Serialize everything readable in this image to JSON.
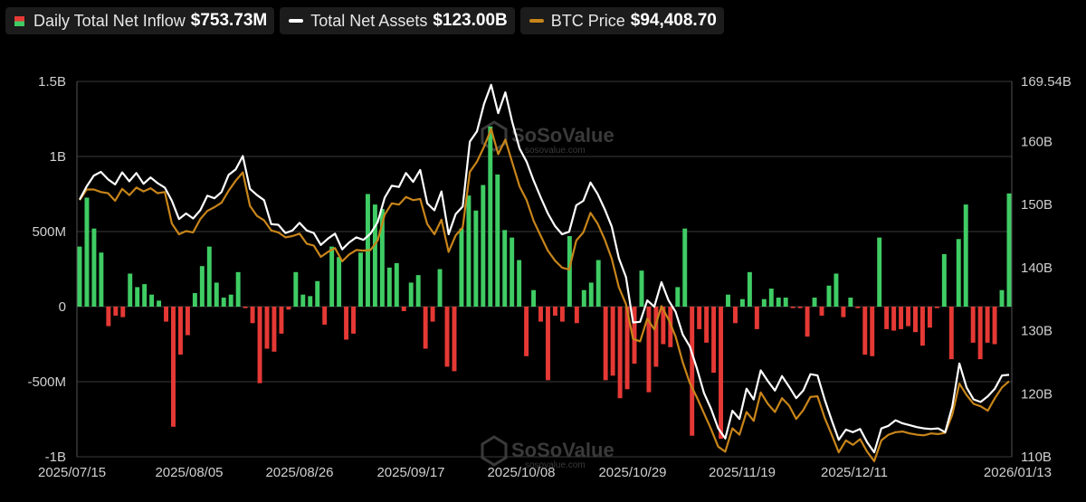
{
  "legend": {
    "inflow_label": "Daily Total Net Inflow",
    "inflow_value": "$753.73M",
    "assets_label": "Total Net Assets",
    "assets_value": "$123.00B",
    "btc_label": "BTC Price",
    "btc_value": "$94,408.70"
  },
  "watermark": {
    "brand": "SoSoValue",
    "site": "sosovalue.com"
  },
  "colors": {
    "positive": "#3fcc64",
    "negative": "#e53935",
    "assets": "#ffffff",
    "btc": "#c8851a",
    "grid": "#3a3a3a"
  },
  "chart_data": {
    "type": "bar",
    "left_axis": {
      "ticks": [
        "1.5B",
        "1B",
        "500M",
        "0",
        "-500M",
        "-1B"
      ],
      "range": [
        -1000000000,
        1500000000
      ]
    },
    "right_axis": {
      "ticks": [
        "169.54B",
        "160B",
        "150B",
        "140B",
        "130B",
        "120B",
        "110B"
      ],
      "range": [
        110,
        169.54
      ]
    },
    "x_ticks": [
      "2025/07/15",
      "2025/08/05",
      "2025/08/26",
      "2025/09/17",
      "2025/10/08",
      "2025/10/29",
      "2025/11/19",
      "2025/12/11",
      "2026/01/13"
    ],
    "series": [
      {
        "name": "Daily Total Net Inflow",
        "kind": "bar",
        "axis": "left",
        "values": [
          400000000,
          726000000,
          520000000,
          360000000,
          -130000000,
          -60000000,
          -70000000,
          220000000,
          130000000,
          150000000,
          80000000,
          40000000,
          -100000000,
          -800000000,
          -320000000,
          -190000000,
          90000000,
          270000000,
          400000000,
          160000000,
          60000000,
          80000000,
          230000000,
          -10000000,
          -110000000,
          -510000000,
          -280000000,
          -300000000,
          -180000000,
          -20000000,
          230000000,
          80000000,
          70000000,
          170000000,
          -120000000,
          400000000,
          330000000,
          -220000000,
          -180000000,
          360000000,
          750000000,
          680000000,
          650000000,
          260000000,
          290000000,
          -30000000,
          160000000,
          210000000,
          -280000000,
          -100000000,
          250000000,
          -400000000,
          -430000000,
          520000000,
          740000000,
          640000000,
          810000000,
          1200000000,
          880000000,
          510000000,
          460000000,
          310000000,
          -330000000,
          110000000,
          -100000000,
          -490000000,
          -60000000,
          -100000000,
          470000000,
          -110000000,
          110000000,
          160000000,
          310000000,
          -490000000,
          -460000000,
          -610000000,
          -550000000,
          -380000000,
          240000000,
          -570000000,
          -400000000,
          -250000000,
          -270000000,
          130000000,
          520000000,
          -860000000,
          -150000000,
          -240000000,
          -440000000,
          -880000000,
          80000000,
          -110000000,
          50000000,
          230000000,
          -150000000,
          50000000,
          120000000,
          60000000,
          60000000,
          -10000000,
          -10000000,
          -200000000,
          60000000,
          -60000000,
          140000000,
          220000000,
          -70000000,
          60000000,
          -10000000,
          -320000000,
          -330000000,
          460000000,
          -150000000,
          -160000000,
          -150000000,
          -130000000,
          -170000000,
          -260000000,
          -140000000,
          -10000000,
          350000000,
          -350000000,
          450000000,
          680000000,
          -240000000,
          -350000000,
          -240000000,
          -250000000,
          110000000,
          753730000
        ]
      },
      {
        "name": "Total Net Assets",
        "kind": "line",
        "axis": "right",
        "color": "#ffffff",
        "values": [
          150.8,
          152.9,
          154.6,
          155.2,
          154.0,
          153.2,
          155.1,
          153.7,
          155.0,
          153.3,
          154.3,
          153.4,
          152.7,
          150.6,
          147.7,
          148.6,
          147.8,
          149.1,
          151.4,
          151.0,
          152.0,
          154.7,
          155.6,
          157.7,
          152.5,
          151.5,
          150.7,
          146.9,
          146.8,
          145.5,
          145.9,
          147.1,
          145.9,
          145.5,
          143.6,
          144.6,
          145.4,
          142.9,
          144.0,
          144.8,
          144.4,
          145.4,
          147.2,
          151.1,
          153.0,
          152.8,
          155.0,
          153.6,
          155.5,
          150.2,
          149.1,
          152.1,
          145.3,
          148.5,
          149.7,
          160.0,
          161.6,
          166.0,
          169.0,
          164.5,
          167.8,
          163.0,
          158.9,
          156.8,
          153.8,
          151.1,
          148.6,
          146.6,
          145.3,
          145.7,
          149.9,
          150.6,
          153.5,
          151.7,
          149.3,
          146.5,
          141.5,
          138.5,
          131.3,
          131.4,
          134.8,
          133.8,
          137.7,
          134.8,
          133.0,
          129.4,
          127.5,
          124.0,
          120.1,
          117.6,
          114.5,
          112.9,
          117.3,
          116.0,
          120.8,
          119.1,
          123.7,
          122.0,
          120.5,
          122.8,
          121.1,
          119.3,
          120.5,
          123.1,
          122.9,
          119.1,
          115.8,
          112.7,
          114.3,
          113.9,
          114.4,
          112.3,
          110.7,
          114.5,
          114.9,
          115.8,
          115.3,
          115.0,
          114.7,
          114.5,
          114.4,
          114.5,
          113.9,
          118.0,
          124.8,
          121.0,
          119.1,
          118.7,
          119.6,
          120.8,
          122.9,
          123.0
        ]
      },
      {
        "name": "BTC Price",
        "kind": "line",
        "axis": "right",
        "color": "#c8851a",
        "values": [
          150.7,
          152.4,
          152.4,
          152.0,
          151.8,
          150.6,
          152.5,
          151.5,
          152.7,
          152.1,
          152.6,
          151.8,
          152.0,
          147.0,
          145.3,
          145.8,
          145.6,
          147.7,
          149.0,
          149.6,
          150.3,
          152.2,
          153.8,
          155.1,
          149.8,
          148.2,
          147.5,
          145.9,
          145.6,
          144.8,
          145.0,
          145.4,
          143.8,
          143.5,
          141.7,
          142.5,
          143.1,
          141.0,
          142.1,
          142.8,
          142.7,
          142.8,
          144.3,
          148.4,
          150.2,
          150.0,
          151.2,
          150.7,
          150.9,
          146.9,
          145.3,
          147.6,
          142.5,
          145.1,
          146.4,
          155.2,
          156.8,
          159.2,
          162.0,
          158.0,
          160.3,
          156.6,
          152.9,
          150.7,
          147.4,
          145.0,
          142.7,
          141.1,
          140.0,
          139.7,
          144.3,
          145.6,
          148.7,
          147.0,
          144.5,
          141.4,
          136.9,
          134.2,
          128.7,
          128.3,
          131.9,
          130.2,
          133.9,
          131.8,
          129.1,
          125.0,
          121.7,
          119.4,
          116.9,
          114.4,
          111.6,
          110.8,
          114.5,
          113.5,
          117.1,
          115.7,
          120.2,
          118.4,
          117.1,
          119.3,
          118.1,
          116.0,
          117.4,
          119.5,
          119.6,
          116.2,
          113.5,
          110.7,
          112.6,
          111.9,
          112.8,
          110.8,
          109.3,
          112.6,
          113.5,
          113.9,
          114.0,
          113.7,
          113.5,
          113.4,
          113.7,
          113.6,
          113.8,
          116.7,
          121.6,
          119.8,
          118.4,
          118.0,
          117.3,
          119.3,
          121.0,
          122.0
        ]
      }
    ]
  }
}
